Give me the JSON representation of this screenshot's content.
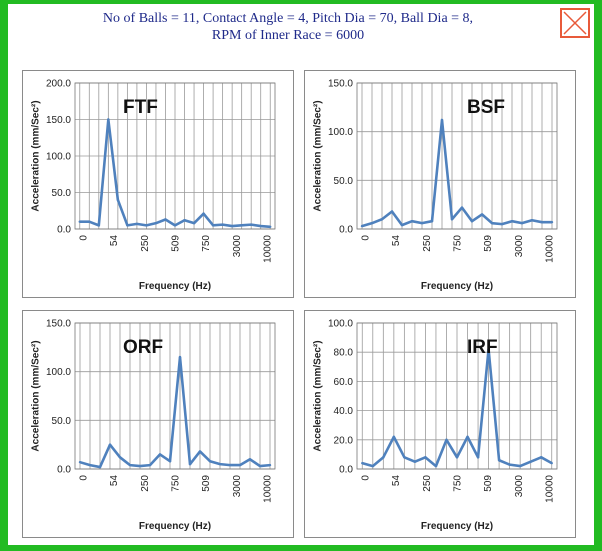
{
  "header": {
    "line1": "No of Balls = 11, Contact Angle = 4, Pitch Dia = 70, Ball Dia = 8,",
    "line2": "RPM of Inner Race = 6000"
  },
  "colors": {
    "line": "#4f81bd",
    "grid": "#9a9a9a",
    "close": "#e85a3a"
  },
  "icons": {
    "close": "close-x-icon"
  },
  "chart_data": [
    {
      "type": "line",
      "title": "FTF",
      "xlabel": "Frequency (Hz)",
      "ylabel": "Acceleration (mm/Sec²)",
      "ylim": [
        0,
        200
      ],
      "yticks": [
        "0.0",
        "50.0",
        "100.0",
        "150.0",
        "200.0"
      ],
      "xticks": [
        "0",
        "54",
        "250",
        "509",
        "750",
        "3000",
        "10000"
      ],
      "grid": true,
      "values": [
        10,
        10,
        5,
        150,
        40,
        5,
        7,
        5,
        8,
        13,
        5,
        12,
        8,
        21,
        5,
        6,
        4,
        5,
        6,
        4,
        3
      ]
    },
    {
      "type": "line",
      "title": "BSF",
      "xlabel": "Frequency (Hz)",
      "ylabel": "Acceleration (mm/Sec²)",
      "ylim": [
        0,
        150
      ],
      "yticks": [
        "0.0",
        "50.0",
        "100.0",
        "150.0"
      ],
      "xticks": [
        "0",
        "54",
        "250",
        "750",
        "509",
        "3000",
        "10000"
      ],
      "grid": true,
      "values": [
        3,
        6,
        10,
        18,
        4,
        8,
        6,
        8,
        112,
        10,
        22,
        8,
        15,
        6,
        5,
        8,
        6,
        9,
        7,
        7
      ]
    },
    {
      "type": "line",
      "title": "ORF",
      "xlabel": "Frequency (Hz)",
      "ylabel": "Acceleration (mm/Sec²)",
      "ylim": [
        0,
        150
      ],
      "yticks": [
        "0.0",
        "50.0",
        "100.0",
        "150.0"
      ],
      "xticks": [
        "0",
        "54",
        "250",
        "750",
        "509",
        "3000",
        "10000"
      ],
      "grid": true,
      "values": [
        7,
        4,
        2,
        25,
        12,
        4,
        3,
        4,
        15,
        8,
        115,
        5,
        18,
        8,
        5,
        4,
        4,
        10,
        3,
        4
      ]
    },
    {
      "type": "line",
      "title": "IRF",
      "xlabel": "Frequency (Hz)",
      "ylabel": "Acceleration (mm/Sec²)",
      "ylim": [
        0,
        100
      ],
      "yticks": [
        "0.0",
        "20.0",
        "40.0",
        "60.0",
        "80.0",
        "100.0"
      ],
      "xticks": [
        "0",
        "54",
        "250",
        "750",
        "509",
        "3000",
        "10000"
      ],
      "grid": true,
      "values": [
        4,
        2,
        8,
        22,
        8,
        5,
        8,
        2,
        20,
        8,
        22,
        8,
        82,
        6,
        3,
        2,
        5,
        8,
        4
      ]
    }
  ]
}
